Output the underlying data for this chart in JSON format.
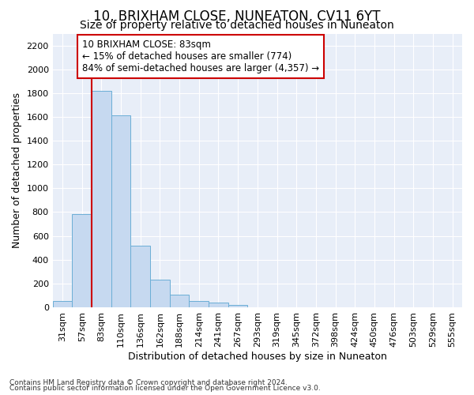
{
  "title1": "10, BRIXHAM CLOSE, NUNEATON, CV11 6YT",
  "title2": "Size of property relative to detached houses in Nuneaton",
  "xlabel": "Distribution of detached houses by size in Nuneaton",
  "ylabel": "Number of detached properties",
  "categories": [
    "31sqm",
    "57sqm",
    "83sqm",
    "110sqm",
    "136sqm",
    "162sqm",
    "188sqm",
    "214sqm",
    "241sqm",
    "267sqm",
    "293sqm",
    "319sqm",
    "345sqm",
    "372sqm",
    "398sqm",
    "424sqm",
    "450sqm",
    "476sqm",
    "503sqm",
    "529sqm",
    "555sqm"
  ],
  "values": [
    55,
    780,
    1820,
    1610,
    520,
    230,
    105,
    55,
    40,
    20,
    0,
    0,
    0,
    0,
    0,
    0,
    0,
    0,
    0,
    0,
    0
  ],
  "highlight_index": 2,
  "bar_color": "#c6d9f0",
  "bar_edge_color": "#6baed6",
  "highlight_line_color": "#cc0000",
  "annotation_line1": "10 BRIXHAM CLOSE: 83sqm",
  "annotation_line2": "← 15% of detached houses are smaller (774)",
  "annotation_line3": "84% of semi-detached houses are larger (4,357) →",
  "annotation_box_color": "#ffffff",
  "annotation_box_edge": "#cc0000",
  "footer1": "Contains HM Land Registry data © Crown copyright and database right 2024.",
  "footer2": "Contains public sector information licensed under the Open Government Licence v3.0.",
  "ylim": [
    0,
    2300
  ],
  "yticks": [
    0,
    200,
    400,
    600,
    800,
    1000,
    1200,
    1400,
    1600,
    1800,
    2000,
    2200
  ],
  "bg_color": "#ffffff",
  "plot_bg_color": "#e8eef8",
  "grid_color": "#ffffff",
  "title1_fontsize": 12,
  "title2_fontsize": 10,
  "tick_fontsize": 8,
  "ylabel_fontsize": 9,
  "xlabel_fontsize": 9,
  "footer_fontsize": 6.5
}
